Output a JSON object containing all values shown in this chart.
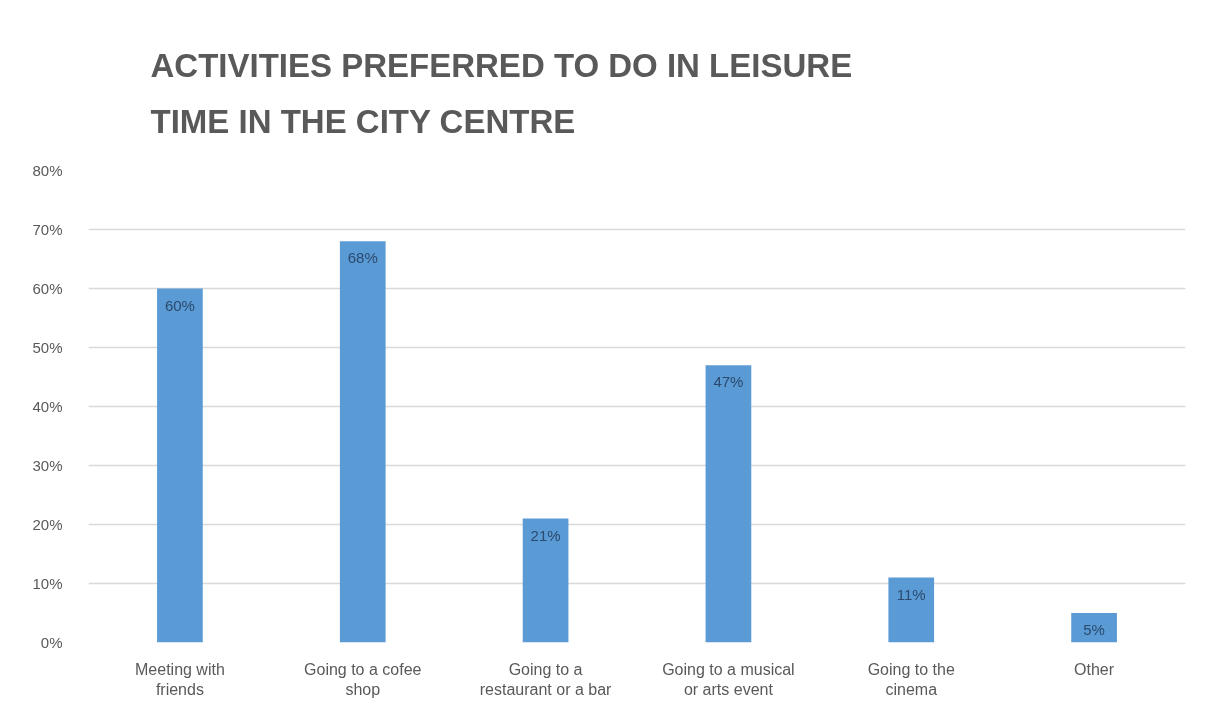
{
  "chart_data": {
    "type": "bar",
    "title": "ACTIVITIES PREFERRED TO DO IN LEISURE TIME IN THE CITY CENTRE",
    "categories": [
      "Meeting with friends",
      "Going to a cofee shop",
      "Going to a restaurant or a bar",
      "Going to a musical or arts event",
      "Going to the cinema",
      "Other"
    ],
    "values": [
      60,
      68,
      21,
      47,
      11,
      5
    ],
    "value_labels": [
      "60%",
      "68%",
      "21%",
      "47%",
      "11%",
      "5%"
    ],
    "color": "#5b9bd5",
    "ylim": [
      0,
      80
    ],
    "yticks": [
      {
        "value": 0,
        "label": "0%"
      },
      {
        "value": 10,
        "label": "10%"
      },
      {
        "value": 20,
        "label": "20%"
      },
      {
        "value": 30,
        "label": "30%"
      },
      {
        "value": 40,
        "label": "40%"
      },
      {
        "value": 50,
        "label": "50%"
      },
      {
        "value": 60,
        "label": "60%"
      },
      {
        "value": 70,
        "label": "70%"
      },
      {
        "value": 80,
        "label": "80%"
      }
    ],
    "grid": "y"
  }
}
